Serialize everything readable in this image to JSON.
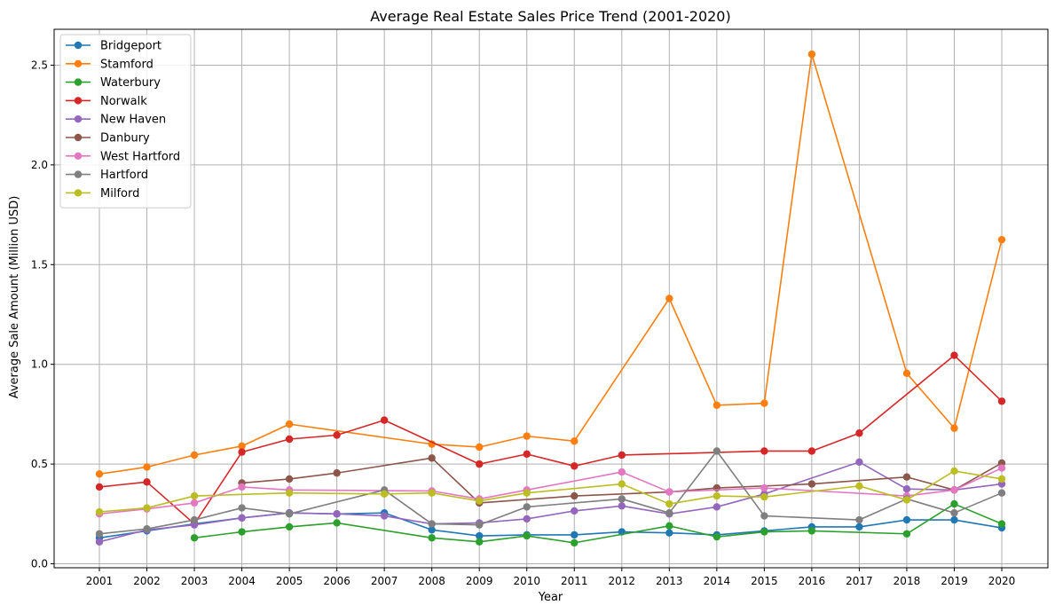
{
  "chart_data": {
    "type": "line",
    "title": "Average Real Estate Sales Price Trend (2001-2020)",
    "xlabel": "Year",
    "ylabel": "Average Sale Amount (Million USD)",
    "ylim": [
      -0.02,
      2.68
    ],
    "yticks": [
      0.0,
      0.5,
      1.0,
      1.5,
      2.0,
      2.5
    ],
    "ytick_labels": [
      "0.0",
      "0.5",
      "1.0",
      "1.5",
      "2.0",
      "2.5"
    ],
    "categories": [
      "2001",
      "2002",
      "2003",
      "2004",
      "2005",
      "2006",
      "2007",
      "2008",
      "2009",
      "2010",
      "2011",
      "2012",
      "2013",
      "2014",
      "2015",
      "2016",
      "2017",
      "2018",
      "2019",
      "2020"
    ],
    "grid": true,
    "legend_position": "top-left",
    "series": [
      {
        "name": "Bridgeport",
        "color": "#1f77b4",
        "values": [
          0.13,
          0.165,
          0.2,
          0.23,
          0.255,
          0.25,
          0.255,
          0.17,
          0.14,
          0.145,
          0.145,
          0.16,
          0.155,
          0.145,
          0.165,
          0.185,
          0.185,
          0.22,
          0.22,
          0.18
        ]
      },
      {
        "name": "Stamford",
        "color": "#ff7f0e",
        "values": [
          0.45,
          0.485,
          0.545,
          0.59,
          0.7,
          null,
          null,
          0.6,
          0.585,
          0.64,
          0.615,
          null,
          1.33,
          0.795,
          0.805,
          2.555,
          null,
          0.955,
          0.68,
          1.625
        ]
      },
      {
        "name": "Waterbury",
        "color": "#2ca02c",
        "values": [
          null,
          null,
          0.13,
          0.16,
          0.185,
          0.205,
          null,
          0.13,
          0.11,
          0.14,
          0.105,
          null,
          0.19,
          0.135,
          0.16,
          0.165,
          null,
          0.15,
          0.3,
          0.2
        ]
      },
      {
        "name": "Norwalk",
        "color": "#d62728",
        "values": [
          0.385,
          0.41,
          0.2,
          0.56,
          0.625,
          0.645,
          0.72,
          null,
          0.5,
          0.55,
          0.49,
          0.545,
          null,
          null,
          0.565,
          0.565,
          0.655,
          null,
          1.045,
          0.815
        ]
      },
      {
        "name": "New Haven",
        "color": "#9467bd",
        "values": [
          0.11,
          0.17,
          0.195,
          0.23,
          0.255,
          0.25,
          0.24,
          0.2,
          0.205,
          0.225,
          0.265,
          0.29,
          0.25,
          0.285,
          0.35,
          null,
          0.51,
          0.375,
          0.37,
          0.4
        ]
      },
      {
        "name": "Danbury",
        "color": "#8c564b",
        "values": [
          null,
          null,
          null,
          0.405,
          0.425,
          0.455,
          null,
          0.53,
          0.305,
          null,
          0.34,
          null,
          0.36,
          0.38,
          null,
          0.4,
          null,
          0.435,
          0.37,
          0.505
        ]
      },
      {
        "name": "West Hartford",
        "color": "#e377c2",
        "values": [
          0.25,
          0.275,
          0.305,
          0.385,
          0.37,
          null,
          null,
          0.365,
          0.325,
          0.37,
          null,
          0.46,
          0.36,
          null,
          0.38,
          null,
          null,
          0.34,
          0.37,
          0.48
        ]
      },
      {
        "name": "Hartford",
        "color": "#7f7f7f",
        "values": [
          0.15,
          0.175,
          0.22,
          0.28,
          0.25,
          null,
          0.37,
          0.2,
          0.195,
          0.285,
          null,
          0.325,
          0.255,
          0.565,
          0.24,
          null,
          0.22,
          0.325,
          0.255,
          0.355
        ]
      },
      {
        "name": "Milford",
        "color": "#bcbd22",
        "values": [
          0.26,
          0.28,
          0.34,
          null,
          0.355,
          null,
          0.35,
          0.355,
          0.315,
          0.355,
          null,
          0.4,
          0.3,
          0.34,
          0.335,
          null,
          0.39,
          0.32,
          0.465,
          0.425
        ]
      }
    ]
  }
}
